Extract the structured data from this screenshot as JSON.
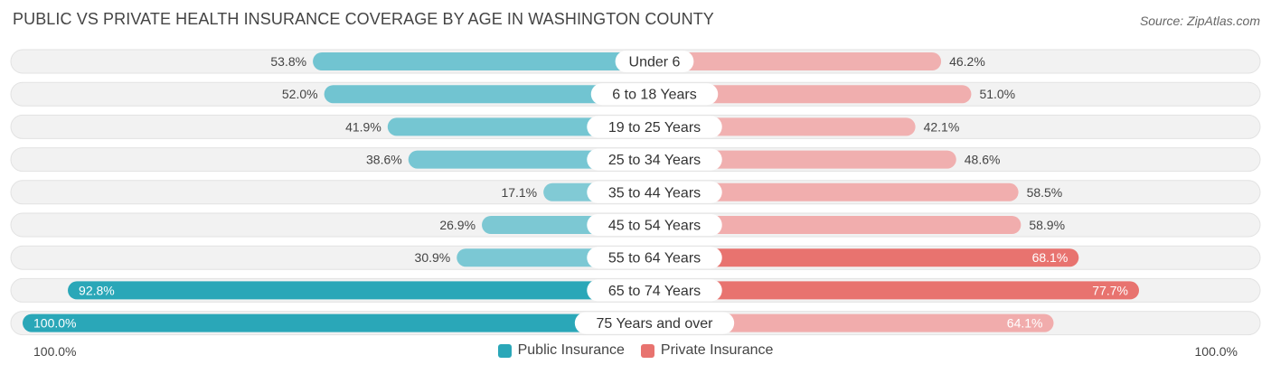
{
  "header": {
    "title": "PUBLIC VS PRIVATE HEALTH INSURANCE COVERAGE BY AGE IN WASHINGTON COUNTY",
    "source": "Source: ZipAtlas.com"
  },
  "colors": {
    "public": "#5bbccb",
    "public_dark": "#2aa7b8",
    "private": "#f0a3a3",
    "private_dark": "#e8736f"
  },
  "chart_data": {
    "type": "bar",
    "orientation": "diverging-horizontal",
    "title": "PUBLIC VS PRIVATE HEALTH INSURANCE COVERAGE BY AGE IN WASHINGTON COUNTY",
    "categories": [
      "Under 6",
      "6 to 18 Years",
      "19 to 25 Years",
      "25 to 34 Years",
      "35 to 44 Years",
      "45 to 54 Years",
      "55 to 64 Years",
      "65 to 74 Years",
      "75 Years and over"
    ],
    "series": [
      {
        "name": "Public Insurance",
        "values": [
          53.8,
          52.0,
          41.9,
          38.6,
          17.1,
          26.9,
          30.9,
          92.8,
          100.0
        ],
        "labels": [
          "53.8%",
          "52.0%",
          "41.9%",
          "38.6%",
          "17.1%",
          "26.9%",
          "30.9%",
          "92.8%",
          "100.0%"
        ]
      },
      {
        "name": "Private Insurance",
        "values": [
          46.2,
          51.0,
          42.1,
          48.6,
          58.5,
          58.9,
          68.1,
          77.7,
          64.1
        ],
        "labels": [
          "46.2%",
          "51.0%",
          "42.1%",
          "48.6%",
          "58.5%",
          "58.9%",
          "68.1%",
          "77.7%",
          "64.1%"
        ]
      }
    ],
    "xlim": [
      -100,
      100
    ],
    "axis_left_label": "100.0%",
    "axis_right_label": "100.0%",
    "legend_position": "bottom-center"
  }
}
